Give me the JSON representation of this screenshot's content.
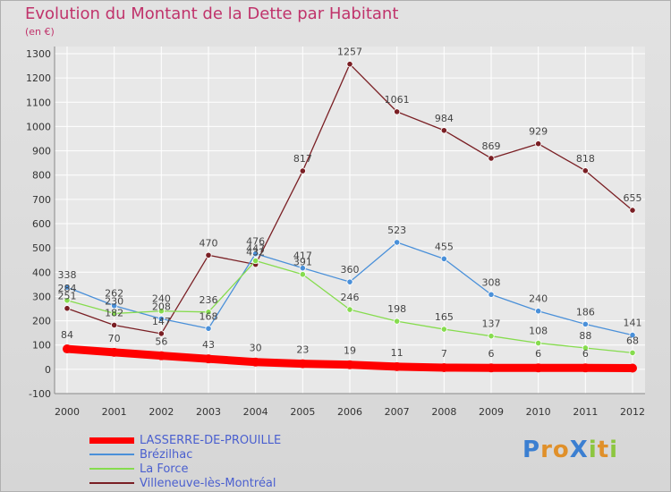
{
  "title": "Evolution du Montant de la Dette par Habitant",
  "unit_label": "(en €)",
  "logo_text": "ProXiti",
  "colors": {
    "title": "#c0336b",
    "legend_text": "#4a5fcf",
    "plot_bg": "#e8e8e8"
  },
  "chart_data": {
    "type": "line",
    "title": "Evolution du Montant de la Dette par Habitant",
    "ylabel": "(en €)",
    "xlabel": "",
    "ylim": [
      -100,
      1300
    ],
    "yticks": [
      -100,
      0,
      100,
      200,
      300,
      400,
      500,
      600,
      700,
      800,
      900,
      1000,
      1100,
      1200,
      1300
    ],
    "categories": [
      "2000",
      "2001",
      "2002",
      "2003",
      "2004",
      "2005",
      "2006",
      "2007",
      "2008",
      "2009",
      "2010",
      "2011",
      "2012"
    ],
    "grid": true,
    "legend_position": "bottom-left",
    "series": [
      {
        "name": "LASSERRE-DE-PROUILLE",
        "color": "#ff0000",
        "values": [
          84,
          70,
          56,
          43,
          30,
          23,
          19,
          11,
          7,
          6,
          6,
          6,
          5
        ],
        "labels": [
          "84",
          "70",
          "56",
          "43",
          "30",
          "23",
          "19",
          "11",
          "7",
          "6",
          "6",
          "6",
          ""
        ]
      },
      {
        "name": "Brézilhac",
        "color": "#4a90d9",
        "values": [
          338,
          262,
          208,
          168,
          476,
          417,
          360,
          523,
          455,
          308,
          240,
          186,
          141
        ],
        "labels": [
          "338",
          "262",
          "208",
          "168",
          "476",
          "417",
          "360",
          "523",
          "455",
          "308",
          "240",
          "186",
          "141"
        ]
      },
      {
        "name": "La Force",
        "color": "#86dc4e",
        "values": [
          284,
          230,
          240,
          236,
          447,
          391,
          246,
          198,
          165,
          137,
          108,
          88,
          68
        ],
        "labels": [
          "284",
          "230",
          "240",
          "236",
          "447",
          "391",
          "246",
          "198",
          "165",
          "137",
          "108",
          "88",
          "68"
        ]
      },
      {
        "name": "Villeneuve-lès-Montréal",
        "color": "#7a1f24",
        "values": [
          251,
          182,
          147,
          470,
          432,
          817,
          1257,
          1061,
          984,
          869,
          929,
          818,
          655
        ],
        "labels": [
          "251",
          "182",
          "147",
          "470",
          "432",
          "817",
          "1257",
          "1061",
          "984",
          "869",
          "929",
          "818",
          "655"
        ]
      }
    ]
  }
}
